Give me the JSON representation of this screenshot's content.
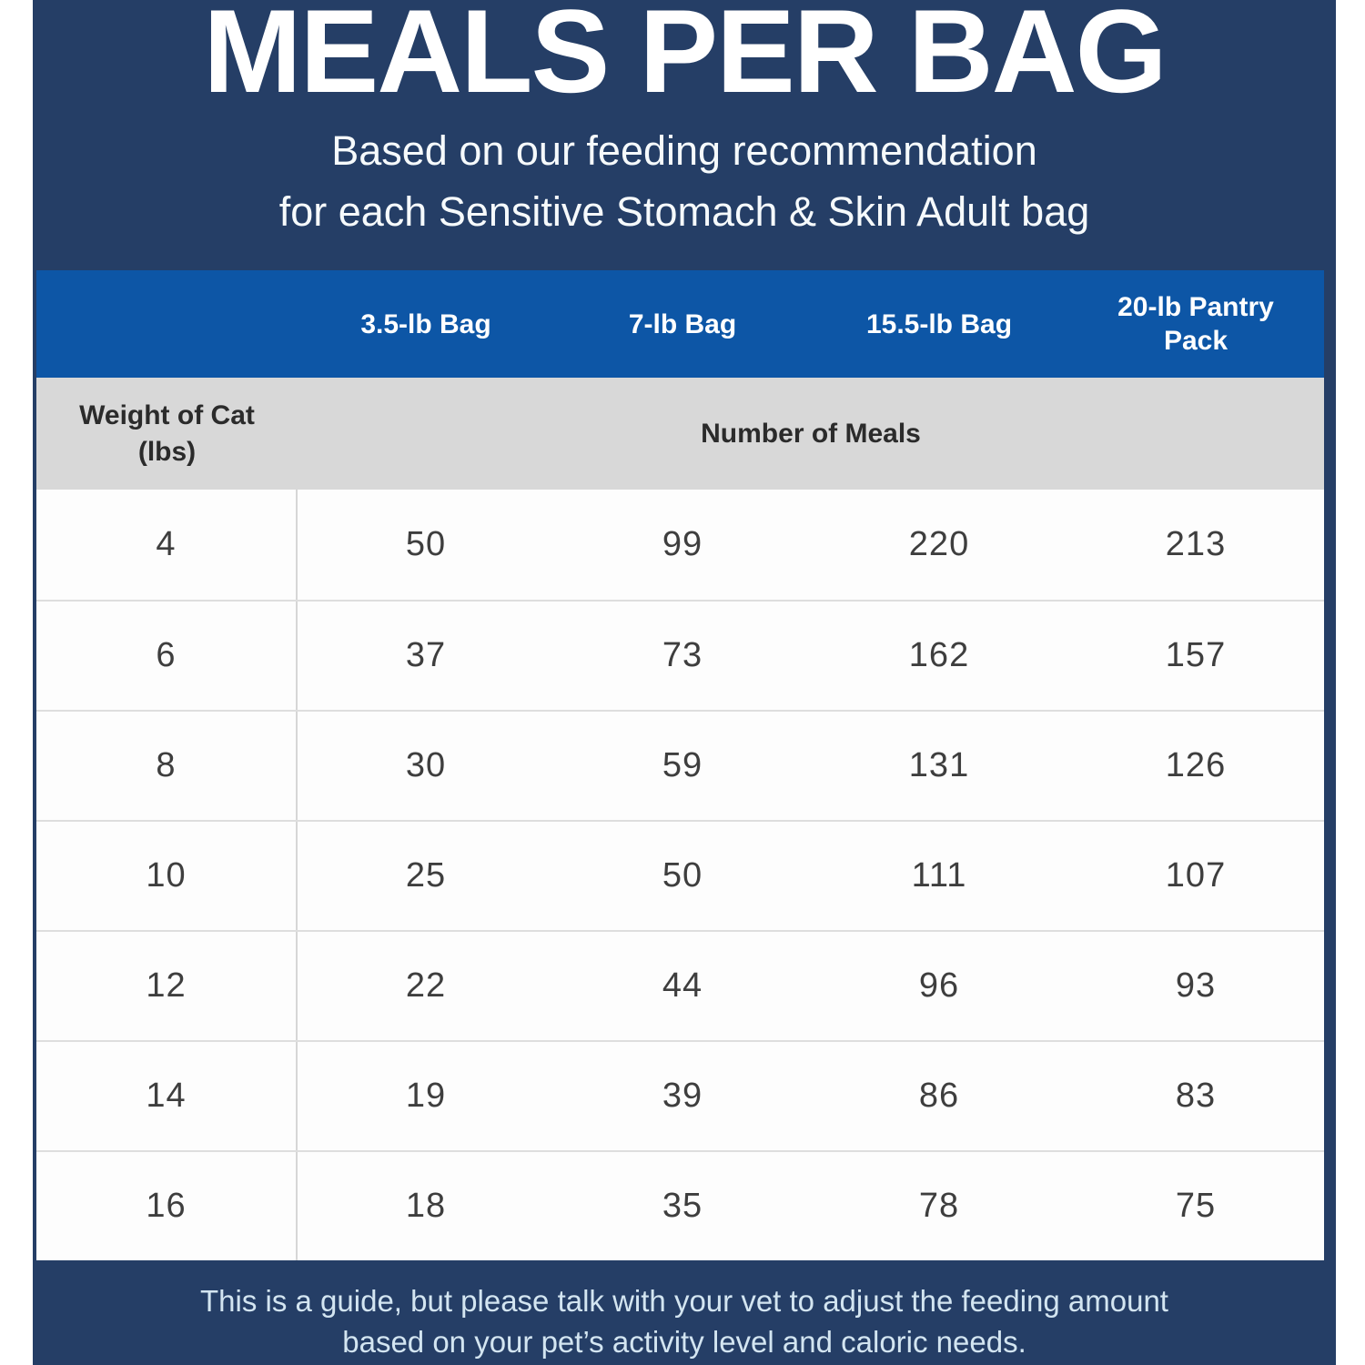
{
  "header": {
    "title": "MEALS PER BAG",
    "subtitle_line1": "Based on our feeding recommendation",
    "subtitle_line2": "for each Sensitive Stomach & Skin Adult bag"
  },
  "table": {
    "bag_columns": [
      "3.5-lb Bag",
      "7-lb Bag",
      "15.5-lb Bag",
      "20-lb Pantry Pack"
    ],
    "weight_header": "Weight of Cat (lbs)",
    "meals_header": "Number of Meals",
    "rows": [
      {
        "weight": "4",
        "meals": [
          "50",
          "99",
          "220",
          "213"
        ]
      },
      {
        "weight": "6",
        "meals": [
          "37",
          "73",
          "162",
          "157"
        ]
      },
      {
        "weight": "8",
        "meals": [
          "30",
          "59",
          "131",
          "126"
        ]
      },
      {
        "weight": "10",
        "meals": [
          "25",
          "50",
          "111",
          "107"
        ]
      },
      {
        "weight": "12",
        "meals": [
          "22",
          "44",
          "96",
          "93"
        ]
      },
      {
        "weight": "14",
        "meals": [
          "19",
          "39",
          "86",
          "83"
        ]
      },
      {
        "weight": "16",
        "meals": [
          "18",
          "35",
          "78",
          "75"
        ]
      }
    ]
  },
  "footer": {
    "line1": "This is a guide, but please talk with your vet to adjust the feeding amount",
    "line2": "based on your pet’s activity level and caloric needs."
  },
  "colors": {
    "navy": "#253e66",
    "blue_header": "#0d56a6",
    "gray_subheader": "#d8d8d8",
    "data_text": "#3e3e3e",
    "footer_text": "#d3e5f1"
  },
  "chart_data": {
    "type": "table",
    "title": "MEALS PER BAG",
    "subtitle": "Based on our feeding recommendation for each Sensitive Stomach & Skin Adult bag",
    "row_header_label": "Weight of Cat (lbs)",
    "value_group_label": "Number of Meals",
    "columns": [
      "3.5-lb Bag",
      "7-lb Bag",
      "15.5-lb Bag",
      "20-lb Pantry Pack"
    ],
    "weights_lbs": [
      4,
      6,
      8,
      10,
      12,
      14,
      16
    ],
    "series": [
      {
        "name": "3.5-lb Bag",
        "values": [
          50,
          37,
          30,
          25,
          22,
          19,
          18
        ]
      },
      {
        "name": "7-lb Bag",
        "values": [
          99,
          73,
          59,
          50,
          44,
          39,
          35
        ]
      },
      {
        "name": "15.5-lb Bag",
        "values": [
          220,
          162,
          131,
          111,
          96,
          86,
          78
        ]
      },
      {
        "name": "20-lb Pantry Pack",
        "values": [
          213,
          157,
          126,
          107,
          93,
          83,
          75
        ]
      }
    ],
    "note": "This is a guide, but please talk with your vet to adjust the feeding amount based on your pet’s activity level and caloric needs."
  }
}
